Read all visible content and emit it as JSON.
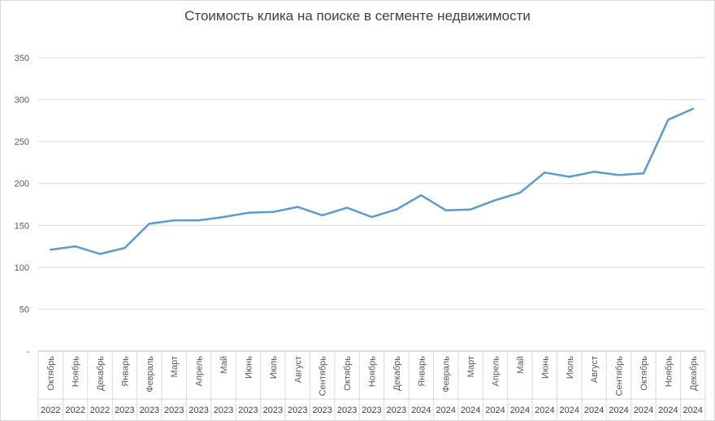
{
  "chart_data": {
    "type": "line",
    "title": "Стоимость клика  на поиске  в сегменте  недвижимости",
    "xlabel": "",
    "ylabel": "",
    "ylim": [
      0,
      350
    ],
    "yticks": [
      {
        "value": 0,
        "label": "-"
      },
      {
        "value": 50,
        "label": "50"
      },
      {
        "value": 100,
        "label": "100"
      },
      {
        "value": 150,
        "label": "150"
      },
      {
        "value": 200,
        "label": "200"
      },
      {
        "value": 250,
        "label": "250"
      },
      {
        "value": 300,
        "label": "300"
      },
      {
        "value": 350,
        "label": "350"
      }
    ],
    "grid": true,
    "legend": "none",
    "color": "#5b9bd5",
    "categories": [
      {
        "month": "Октябрь",
        "year": "2022"
      },
      {
        "month": "Ноябрь",
        "year": "2022"
      },
      {
        "month": "Декабрь",
        "year": "2022"
      },
      {
        "month": "Январь",
        "year": "2023"
      },
      {
        "month": "Февраль",
        "year": "2023"
      },
      {
        "month": "Март",
        "year": "2023"
      },
      {
        "month": "Апрель",
        "year": "2023"
      },
      {
        "month": "Май",
        "year": "2023"
      },
      {
        "month": "Июнь",
        "year": "2023"
      },
      {
        "month": "Июль",
        "year": "2023"
      },
      {
        "month": "Август",
        "year": "2023"
      },
      {
        "month": "Сентябрь",
        "year": "2023"
      },
      {
        "month": "Октябрь",
        "year": "2023"
      },
      {
        "month": "Ноябрь",
        "year": "2023"
      },
      {
        "month": "Декабрь",
        "year": "2023"
      },
      {
        "month": "Январь",
        "year": "2024"
      },
      {
        "month": "Февраль",
        "year": "2024"
      },
      {
        "month": "Март",
        "year": "2024"
      },
      {
        "month": "Апрель",
        "year": "2024"
      },
      {
        "month": "Май",
        "year": "2024"
      },
      {
        "month": "Июнь",
        "year": "2024"
      },
      {
        "month": "Июль",
        "year": "2024"
      },
      {
        "month": "Август",
        "year": "2024"
      },
      {
        "month": "Сентябрь",
        "year": "2024"
      },
      {
        "month": "Октябрь",
        "year": "2024"
      },
      {
        "month": "Ноябрь",
        "year": "2024"
      },
      {
        "month": "Декабрь",
        "year": "2024"
      }
    ],
    "values": [
      121,
      125,
      116,
      123,
      152,
      156,
      156,
      160,
      165,
      166,
      172,
      162,
      171,
      160,
      169,
      186,
      168,
      169,
      180,
      189,
      213,
      208,
      214,
      210,
      212,
      276,
      289
    ]
  }
}
